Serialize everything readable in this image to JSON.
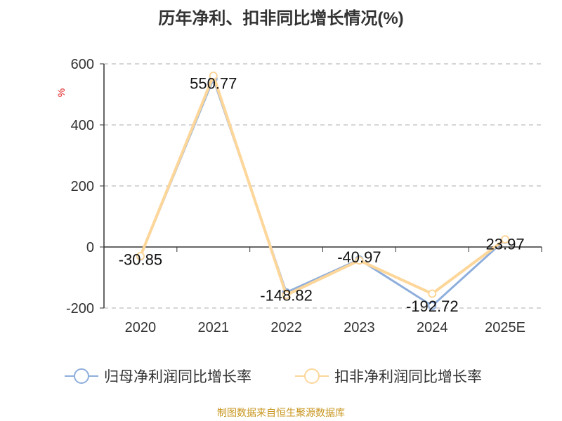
{
  "chart_data": {
    "type": "line",
    "title": "历年净利、扣非同比增长情况(%)",
    "ylabel": "%",
    "categories": [
      "2020",
      "2021",
      "2022",
      "2023",
      "2024",
      "2025E"
    ],
    "ylim": [
      -200,
      600
    ],
    "yticks": [
      -200,
      0,
      200,
      400,
      600
    ],
    "grid": true,
    "legend_position": "bottom",
    "series": [
      {
        "name": "归母净利润同比增长率",
        "color": "#8eaedc",
        "values": [
          -30.85,
          550.77,
          -148.82,
          -40.97,
          -192.72,
          23.97
        ],
        "labels": [
          "-30.85",
          "550.77",
          "-148.82",
          "-40.97",
          "-192.72",
          "23.97"
        ]
      },
      {
        "name": "扣非净利润同比增长率",
        "color": "#fdd69a",
        "values": [
          -30,
          561,
          -157,
          -44,
          -153,
          25
        ]
      }
    ]
  },
  "source": "制图数据来自恒生聚源数据库"
}
